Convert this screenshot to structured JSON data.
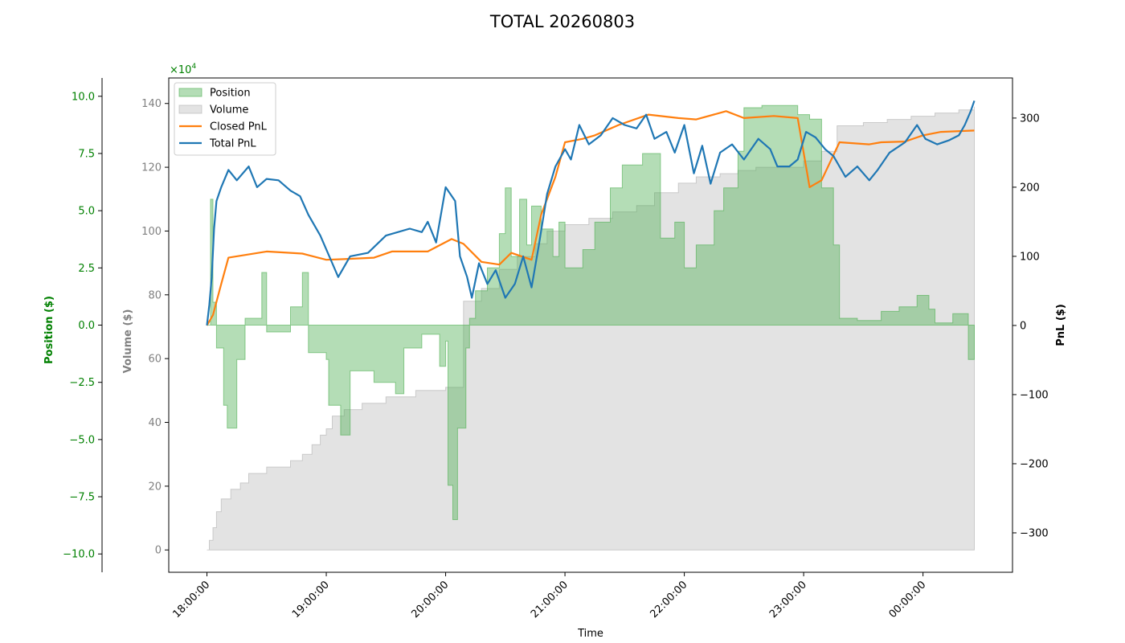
{
  "chart_data": {
    "type": "line",
    "title": "TOTAL 20260803",
    "xlabel": "Time",
    "x_ticks": [
      "18:00:00",
      "19:00:00",
      "20:00:00",
      "21:00:00",
      "22:00:00",
      "23:00:00",
      "00:00:00"
    ],
    "x_range_hours": [
      17.68,
      24.75
    ],
    "axes": {
      "position": {
        "label": "Position ($)",
        "color": "#008000",
        "range": [
          -10.8,
          10.8
        ],
        "ticks": [
          -10.0,
          -7.5,
          -5.0,
          -2.5,
          0.0,
          2.5,
          5.0,
          7.5,
          10.0
        ],
        "tick_labels": [
          "−10.0",
          "−7.5",
          "−5.0",
          "−2.5",
          "0.0",
          "2.5",
          "5.0",
          "7.5",
          "10.0"
        ],
        "multiplier_label": "×10",
        "multiplier_exponent": "4"
      },
      "volume": {
        "label": "Volume ($)",
        "color": "#808080",
        "range": [
          -7,
          148
        ],
        "ticks": [
          0,
          20,
          40,
          60,
          80,
          100,
          120,
          140
        ],
        "tick_labels": [
          "0",
          "20",
          "40",
          "60",
          "80",
          "100",
          "120",
          "140"
        ]
      },
      "pnl": {
        "label": "PnL ($)",
        "color": "#000000",
        "range": [
          -357,
          358
        ],
        "ticks": [
          -300,
          -200,
          -100,
          0,
          100,
          200,
          300
        ],
        "tick_labels": [
          "−300",
          "−200",
          "−100",
          "0",
          "100",
          "200",
          "300"
        ]
      }
    },
    "legend": {
      "placement": "top-left",
      "entries": [
        {
          "label": "Position",
          "kind": "patch",
          "color": "#4caf50"
        },
        {
          "label": "Volume",
          "kind": "patch",
          "color": "#bdbdbd"
        },
        {
          "label": "Closed PnL",
          "kind": "line",
          "color": "#ff7f0e"
        },
        {
          "label": "Total PnL",
          "kind": "line",
          "color": "#1f77b4"
        }
      ]
    },
    "series": [
      {
        "name": "Position",
        "axis": "position",
        "style": "step-area",
        "color": "#4caf50",
        "points": [
          [
            18.0,
            0.0
          ],
          [
            18.03,
            5.5
          ],
          [
            18.05,
            1.0
          ],
          [
            18.08,
            -1.0
          ],
          [
            18.14,
            -3.5
          ],
          [
            18.17,
            -4.5
          ],
          [
            18.25,
            -1.5
          ],
          [
            18.32,
            0.3
          ],
          [
            18.38,
            0.3
          ],
          [
            18.46,
            2.3
          ],
          [
            18.5,
            -0.3
          ],
          [
            18.7,
            0.8
          ],
          [
            18.8,
            2.3
          ],
          [
            18.85,
            -1.2
          ],
          [
            19.0,
            -1.5
          ],
          [
            19.02,
            -3.5
          ],
          [
            19.12,
            -4.8
          ],
          [
            19.2,
            -2.0
          ],
          [
            19.4,
            -2.5
          ],
          [
            19.58,
            -3.0
          ],
          [
            19.65,
            -1.0
          ],
          [
            19.8,
            -0.4
          ],
          [
            19.95,
            -1.8
          ],
          [
            20.0,
            -0.7
          ],
          [
            20.02,
            -7.0
          ],
          [
            20.06,
            -8.5
          ],
          [
            20.1,
            -4.5
          ],
          [
            20.17,
            -1.0
          ],
          [
            20.2,
            0.3
          ],
          [
            20.25,
            1.5
          ],
          [
            20.35,
            2.5
          ],
          [
            20.45,
            4.0
          ],
          [
            20.5,
            6.0
          ],
          [
            20.55,
            3.0
          ],
          [
            20.62,
            5.5
          ],
          [
            20.68,
            3.5
          ],
          [
            20.72,
            5.2
          ],
          [
            20.8,
            4.2
          ],
          [
            20.9,
            3.0
          ],
          [
            20.95,
            4.5
          ],
          [
            21.0,
            2.5
          ],
          [
            21.15,
            3.3
          ],
          [
            21.25,
            4.5
          ],
          [
            21.38,
            6.0
          ],
          [
            21.48,
            7.0
          ],
          [
            21.65,
            7.5
          ],
          [
            21.8,
            3.8
          ],
          [
            21.92,
            4.5
          ],
          [
            22.0,
            2.5
          ],
          [
            22.1,
            3.5
          ],
          [
            22.25,
            5.0
          ],
          [
            22.33,
            6.0
          ],
          [
            22.45,
            7.6
          ],
          [
            22.5,
            9.5
          ],
          [
            22.65,
            9.6
          ],
          [
            22.8,
            9.6
          ],
          [
            22.95,
            9.2
          ],
          [
            23.05,
            9.0
          ],
          [
            23.15,
            6.0
          ],
          [
            23.25,
            3.5
          ],
          [
            23.3,
            0.3
          ],
          [
            23.45,
            0.2
          ],
          [
            23.55,
            0.2
          ],
          [
            23.65,
            0.6
          ],
          [
            23.8,
            0.8
          ],
          [
            23.95,
            1.3
          ],
          [
            24.05,
            0.7
          ],
          [
            24.1,
            0.1
          ],
          [
            24.25,
            0.5
          ],
          [
            24.35,
            0.5
          ],
          [
            24.38,
            -1.5
          ],
          [
            24.43,
            -1.3
          ]
        ]
      },
      {
        "name": "Volume",
        "axis": "volume",
        "style": "step-area",
        "color": "#bdbdbd",
        "points": [
          [
            18.0,
            0
          ],
          [
            18.02,
            3
          ],
          [
            18.05,
            7
          ],
          [
            18.08,
            12
          ],
          [
            18.12,
            16
          ],
          [
            18.2,
            19
          ],
          [
            18.28,
            21
          ],
          [
            18.35,
            24
          ],
          [
            18.5,
            26
          ],
          [
            18.7,
            28
          ],
          [
            18.8,
            30
          ],
          [
            18.88,
            33
          ],
          [
            18.95,
            36
          ],
          [
            19.0,
            38
          ],
          [
            19.05,
            42
          ],
          [
            19.15,
            44
          ],
          [
            19.3,
            46
          ],
          [
            19.5,
            48
          ],
          [
            19.75,
            50
          ],
          [
            19.88,
            50
          ],
          [
            20.0,
            51
          ],
          [
            20.15,
            78
          ],
          [
            20.3,
            82
          ],
          [
            20.45,
            88
          ],
          [
            20.6,
            92
          ],
          [
            20.75,
            96
          ],
          [
            20.85,
            100
          ],
          [
            21.0,
            102
          ],
          [
            21.2,
            104
          ],
          [
            21.4,
            106
          ],
          [
            21.6,
            108
          ],
          [
            21.75,
            112
          ],
          [
            21.95,
            115
          ],
          [
            22.1,
            117
          ],
          [
            22.3,
            118
          ],
          [
            22.45,
            119
          ],
          [
            22.6,
            120
          ],
          [
            22.8,
            120
          ],
          [
            23.0,
            122
          ],
          [
            23.15,
            125
          ],
          [
            23.28,
            133
          ],
          [
            23.5,
            134
          ],
          [
            23.7,
            135
          ],
          [
            23.9,
            136
          ],
          [
            24.1,
            137
          ],
          [
            24.3,
            138
          ],
          [
            24.43,
            139
          ]
        ]
      },
      {
        "name": "Closed PnL",
        "axis": "pnl",
        "style": "line",
        "color": "#ff7f0e",
        "points": [
          [
            18.0,
            0
          ],
          [
            18.05,
            15
          ],
          [
            18.12,
            60
          ],
          [
            18.18,
            98
          ],
          [
            18.5,
            107
          ],
          [
            18.8,
            104
          ],
          [
            19.0,
            95
          ],
          [
            19.15,
            96
          ],
          [
            19.4,
            98
          ],
          [
            19.55,
            107
          ],
          [
            19.85,
            107
          ],
          [
            20.05,
            125
          ],
          [
            20.15,
            118
          ],
          [
            20.3,
            92
          ],
          [
            20.45,
            88
          ],
          [
            20.55,
            105
          ],
          [
            20.72,
            95
          ],
          [
            20.8,
            160
          ],
          [
            20.92,
            215
          ],
          [
            21.0,
            265
          ],
          [
            21.15,
            270
          ],
          [
            21.25,
            275
          ],
          [
            21.45,
            290
          ],
          [
            21.7,
            305
          ],
          [
            21.95,
            300
          ],
          [
            22.1,
            298
          ],
          [
            22.35,
            310
          ],
          [
            22.5,
            300
          ],
          [
            22.75,
            303
          ],
          [
            22.95,
            300
          ],
          [
            23.05,
            200
          ],
          [
            23.15,
            210
          ],
          [
            23.3,
            265
          ],
          [
            23.55,
            262
          ],
          [
            23.65,
            265
          ],
          [
            23.85,
            266
          ],
          [
            24.0,
            275
          ],
          [
            24.15,
            280
          ],
          [
            24.43,
            282
          ]
        ]
      },
      {
        "name": "Total PnL",
        "axis": "pnl",
        "style": "line",
        "color": "#1f77b4",
        "points": [
          [
            18.0,
            0
          ],
          [
            18.02,
            30
          ],
          [
            18.04,
            70
          ],
          [
            18.06,
            140
          ],
          [
            18.08,
            180
          ],
          [
            18.12,
            200
          ],
          [
            18.18,
            225
          ],
          [
            18.25,
            210
          ],
          [
            18.35,
            230
          ],
          [
            18.42,
            200
          ],
          [
            18.5,
            212
          ],
          [
            18.6,
            210
          ],
          [
            18.7,
            195
          ],
          [
            18.78,
            187
          ],
          [
            18.85,
            160
          ],
          [
            18.95,
            130
          ],
          [
            19.05,
            90
          ],
          [
            19.1,
            70
          ],
          [
            19.2,
            100
          ],
          [
            19.35,
            105
          ],
          [
            19.5,
            130
          ],
          [
            19.7,
            140
          ],
          [
            19.8,
            135
          ],
          [
            19.85,
            150
          ],
          [
            19.92,
            120
          ],
          [
            20.0,
            200
          ],
          [
            20.08,
            180
          ],
          [
            20.12,
            100
          ],
          [
            20.18,
            70
          ],
          [
            20.22,
            40
          ],
          [
            20.28,
            90
          ],
          [
            20.35,
            60
          ],
          [
            20.42,
            80
          ],
          [
            20.5,
            40
          ],
          [
            20.58,
            60
          ],
          [
            20.65,
            100
          ],
          [
            20.72,
            55
          ],
          [
            20.78,
            115
          ],
          [
            20.85,
            190
          ],
          [
            20.92,
            230
          ],
          [
            21.0,
            255
          ],
          [
            21.05,
            240
          ],
          [
            21.12,
            290
          ],
          [
            21.2,
            262
          ],
          [
            21.3,
            275
          ],
          [
            21.4,
            300
          ],
          [
            21.5,
            290
          ],
          [
            21.6,
            285
          ],
          [
            21.68,
            305
          ],
          [
            21.75,
            270
          ],
          [
            21.85,
            280
          ],
          [
            21.92,
            250
          ],
          [
            22.0,
            290
          ],
          [
            22.08,
            220
          ],
          [
            22.15,
            260
          ],
          [
            22.22,
            205
          ],
          [
            22.3,
            250
          ],
          [
            22.4,
            262
          ],
          [
            22.5,
            240
          ],
          [
            22.62,
            270
          ],
          [
            22.72,
            255
          ],
          [
            22.78,
            230
          ],
          [
            22.88,
            230
          ],
          [
            22.95,
            240
          ],
          [
            23.02,
            280
          ],
          [
            23.1,
            272
          ],
          [
            23.18,
            255
          ],
          [
            23.25,
            245
          ],
          [
            23.35,
            215
          ],
          [
            23.45,
            230
          ],
          [
            23.55,
            210
          ],
          [
            23.62,
            225
          ],
          [
            23.72,
            250
          ],
          [
            23.85,
            265
          ],
          [
            23.95,
            290
          ],
          [
            24.02,
            270
          ],
          [
            24.12,
            262
          ],
          [
            24.22,
            268
          ],
          [
            24.3,
            275
          ],
          [
            24.35,
            290
          ],
          [
            24.4,
            310
          ],
          [
            24.43,
            325
          ]
        ]
      }
    ]
  }
}
